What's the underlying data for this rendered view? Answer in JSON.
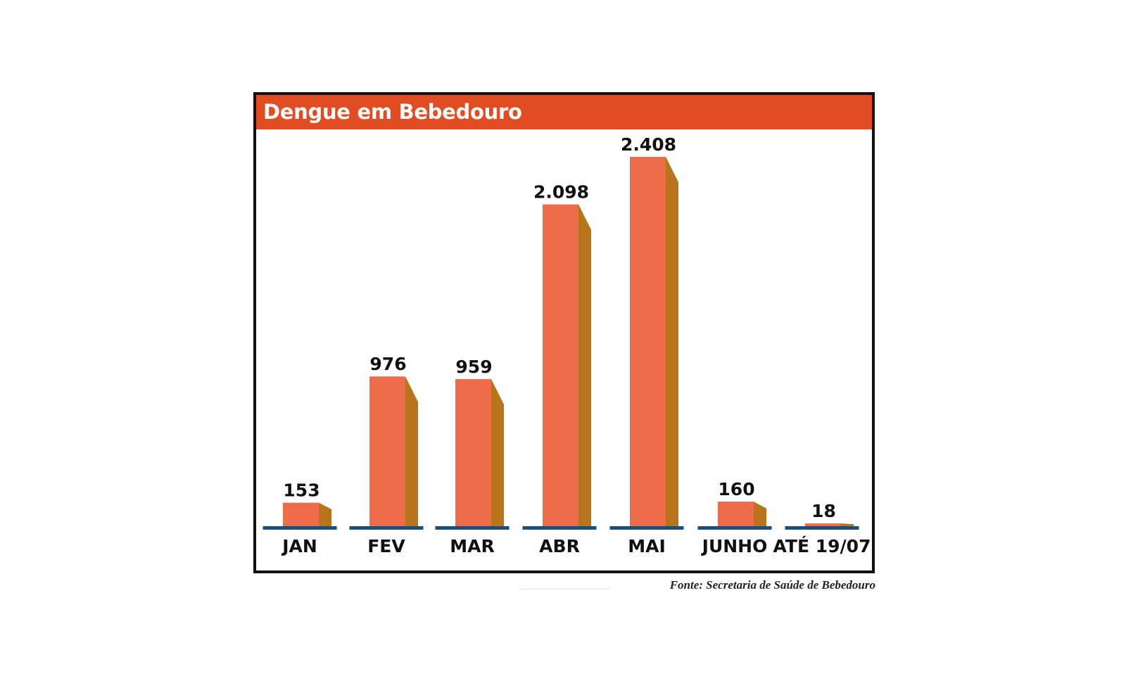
{
  "chart_data": {
    "type": "bar",
    "title": "Dengue em Bebedouro",
    "categories": [
      "JAN",
      "FEV",
      "MAR",
      "ABR",
      "MAI",
      "JUNHO",
      "ATÉ 19/07"
    ],
    "values": [
      153,
      976,
      959,
      2098,
      2408,
      160,
      18
    ],
    "value_labels": [
      "153",
      "976",
      "959",
      "2.098",
      "2.408",
      "160",
      "18"
    ],
    "source": "Fonte: Secretaria de Saúde de Bebedouro",
    "colors": {
      "title_bar": "#e24c22",
      "bar_front": "#ef6c4b",
      "bar_side": "#b8741a",
      "baseline": "#1c4e7a",
      "label": "#111111"
    }
  }
}
